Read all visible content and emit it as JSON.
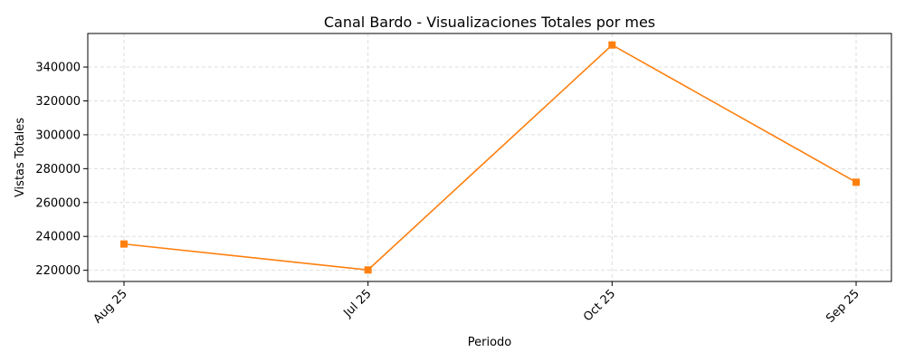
{
  "chart_data": {
    "type": "line",
    "title": "Canal Bardo - Visualizaciones Totales por mes",
    "xlabel": "Periodo",
    "ylabel": "Vistas Totales",
    "categories": [
      "Aug 25",
      "Jul 25",
      "Oct 25",
      "Sep 25"
    ],
    "series": [
      {
        "values": [
          235500,
          220200,
          353000,
          272000
        ],
        "color": "#ff7f0e",
        "marker": "square"
      }
    ],
    "ylim": [
      213400,
      359800
    ],
    "yticks": [
      220000,
      240000,
      260000,
      280000,
      300000,
      320000,
      340000
    ],
    "grid": true,
    "legend": "none"
  }
}
